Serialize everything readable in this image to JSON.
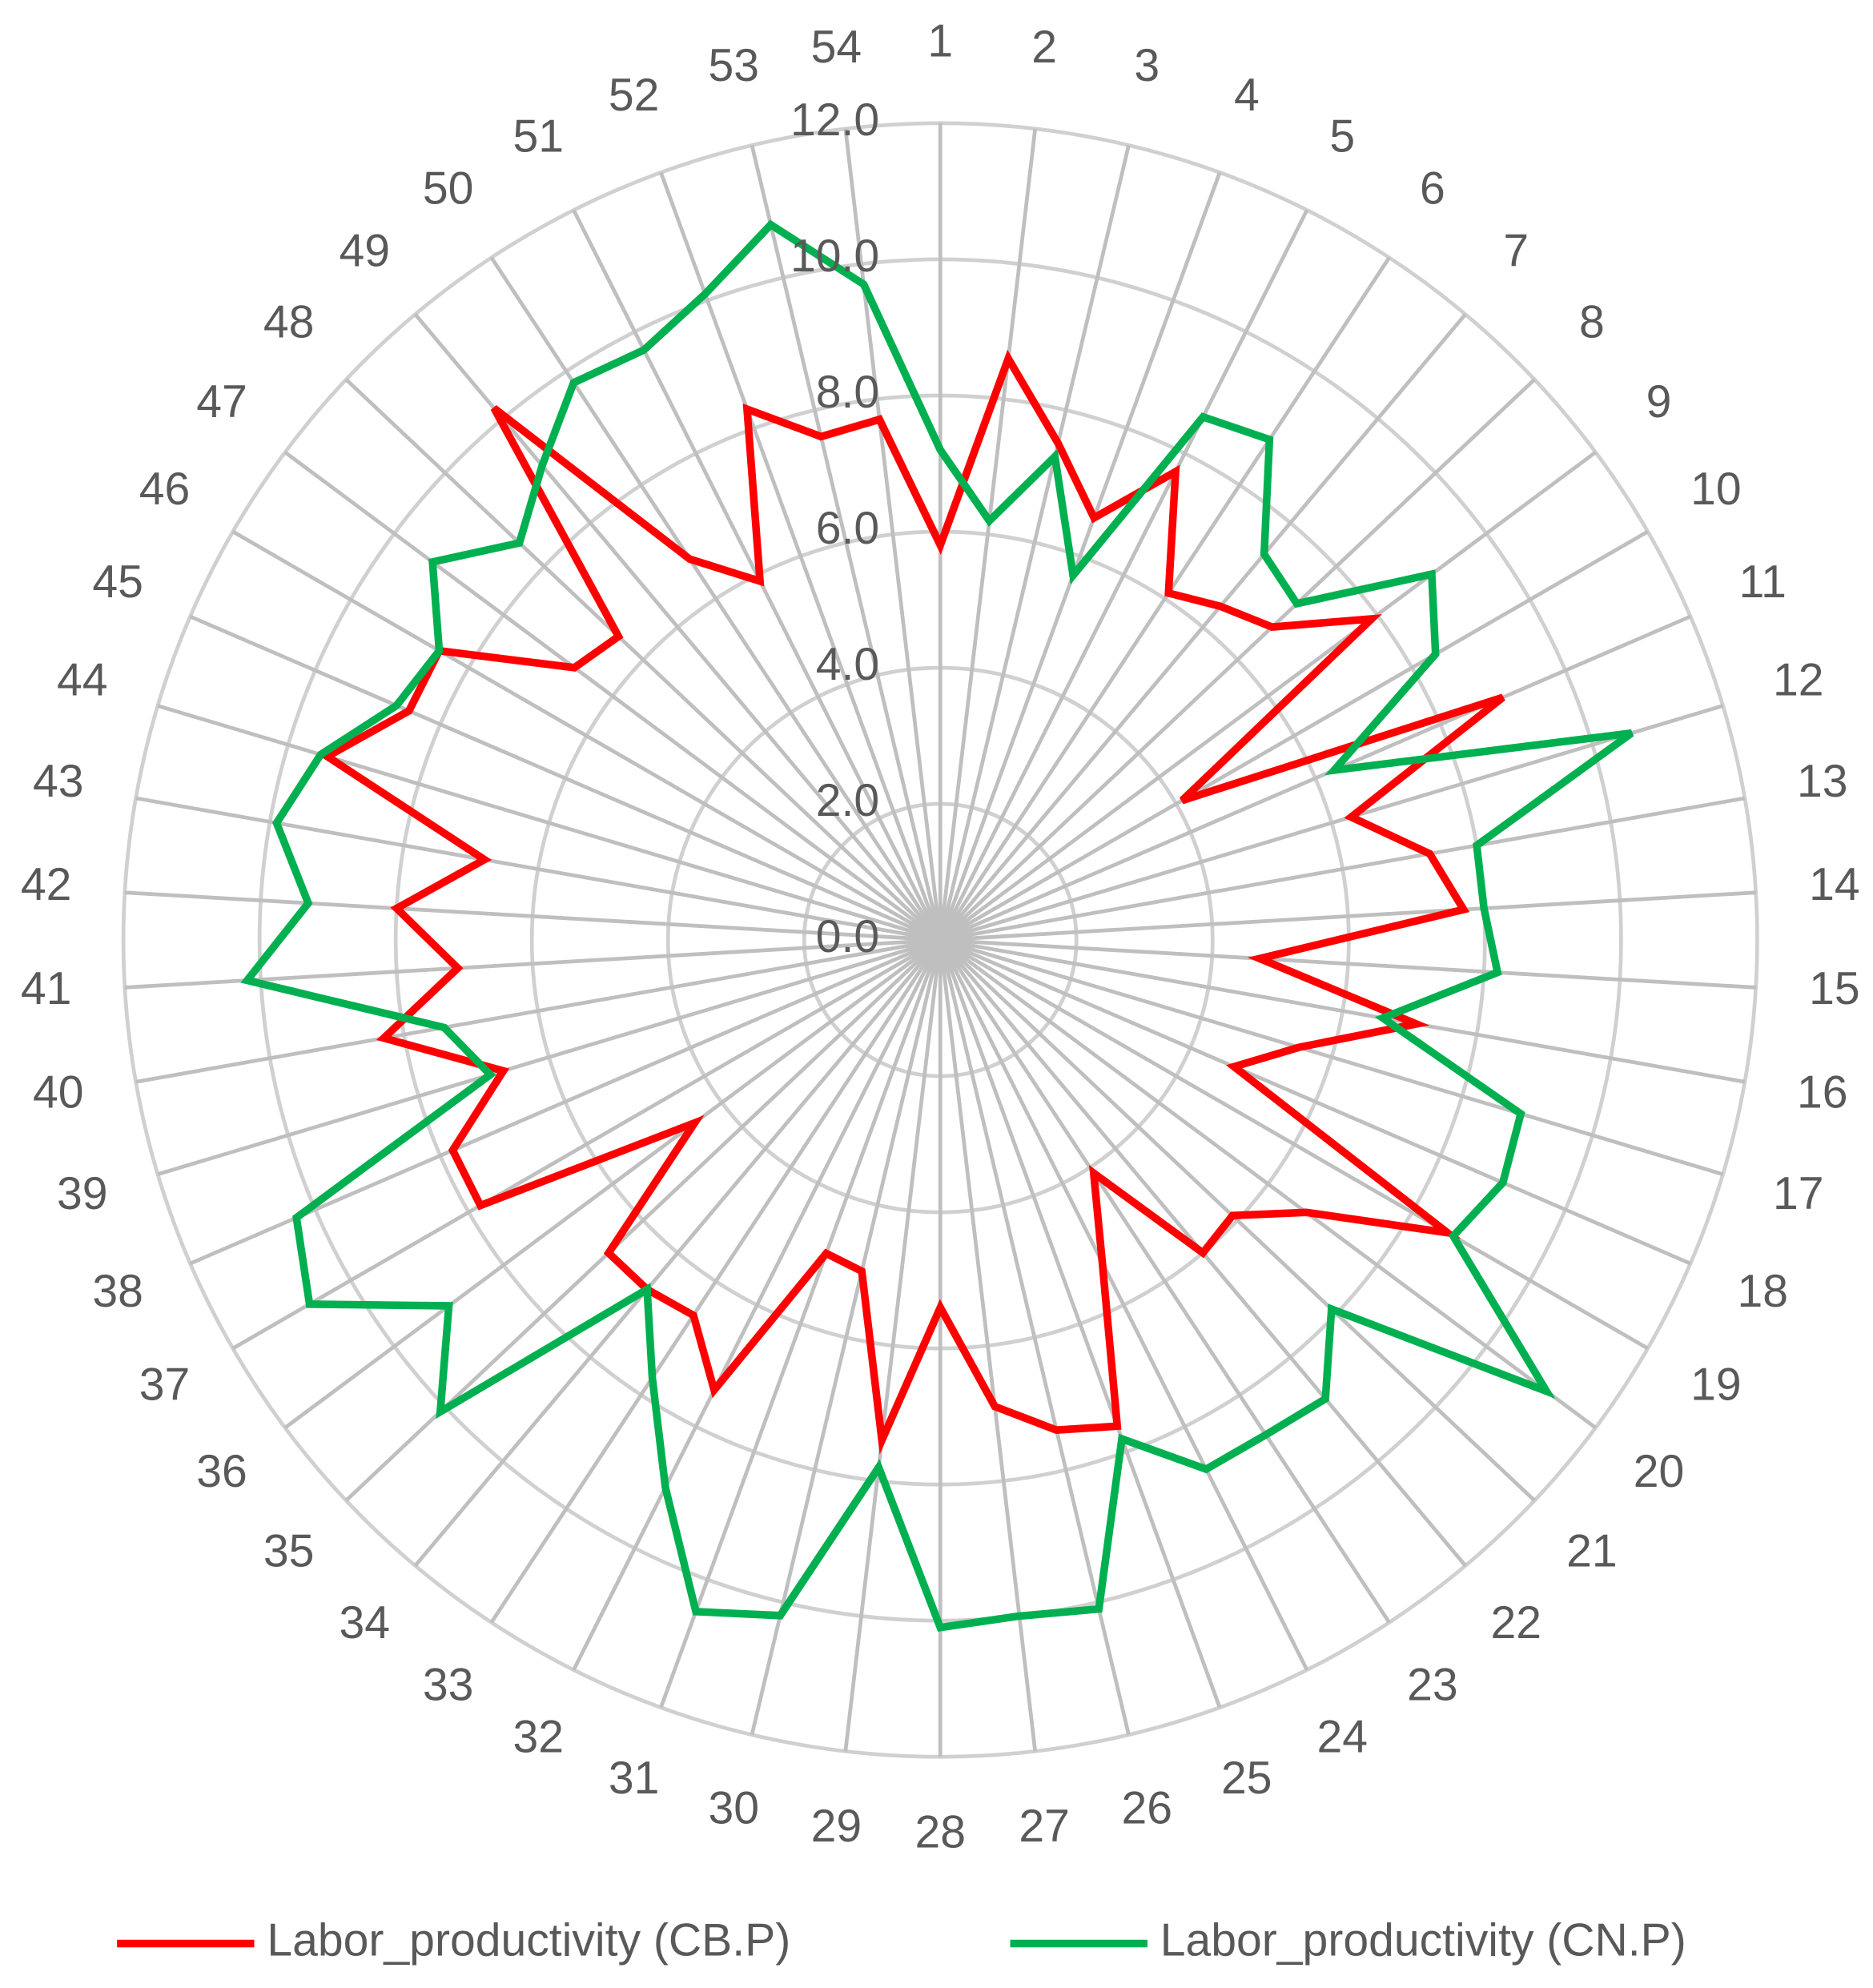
{
  "chart_data": {
    "type": "radar",
    "categories": [
      "1",
      "2",
      "3",
      "4",
      "5",
      "6",
      "7",
      "8",
      "9",
      "10",
      "11",
      "12",
      "13",
      "14",
      "15",
      "16",
      "17",
      "18",
      "19",
      "20",
      "21",
      "22",
      "23",
      "24",
      "25",
      "26",
      "27",
      "28",
      "29",
      "30",
      "31",
      "32",
      "33",
      "34",
      "35",
      "36",
      "37",
      "38",
      "39",
      "40",
      "41",
      "42",
      "43",
      "44",
      "45",
      "46",
      "47",
      "48",
      "49",
      "50",
      "51",
      "52",
      "53",
      "54"
    ],
    "ylim": [
      0,
      12
    ],
    "yticks": [
      {
        "value": 0,
        "label": "0.0"
      },
      {
        "value": 2,
        "label": "2.0"
      },
      {
        "value": 4,
        "label": "4.0"
      },
      {
        "value": 6,
        "label": "6.0"
      },
      {
        "value": 8,
        "label": "8.0"
      },
      {
        "value": 10,
        "label": "10.0"
      },
      {
        "value": 12,
        "label": "12.0"
      }
    ],
    "grid": true,
    "legend": "bottom",
    "series": [
      {
        "name": "Labor_productivity (CB.P)",
        "color": "#ff0000",
        "values": [
          5.8,
          8.6,
          7.5,
          6.6,
          7.7,
          6.1,
          6.4,
          6.7,
          7.9,
          4.1,
          9.0,
          6.3,
          7.3,
          7.7,
          4.7,
          7.1,
          5.5,
          4.7,
          8.6,
          6.7,
          5.9,
          6.0,
          4.1,
          5.3,
          7.6,
          7.4,
          6.9,
          5.4,
          7.4,
          5.0,
          4.9,
          7.4,
          6.6,
          6.7,
          6.7,
          4.5,
          7.8,
          7.8,
          6.7,
          8.3,
          7.1,
          8.0,
          6.8,
          9.4,
          8.5,
          8.5,
          6.7,
          6.5,
          10.2,
          6.7,
          5.9,
          8.3,
          7.6,
          7.7
        ]
      },
      {
        "name": "Labor_productivity (CN.P)",
        "color": "#00b050",
        "values": [
          7.2,
          6.2,
          7.3,
          5.7,
          8.6,
          8.8,
          7.4,
          7.2,
          9.0,
          8.4,
          6.3,
          10.6,
          8.0,
          8.0,
          8.2,
          6.6,
          8.9,
          9.0,
          8.7,
          11.1,
          7.9,
          8.8,
          8.7,
          8.7,
          7.8,
          10.1,
          10.0,
          10.1,
          7.8,
          10.2,
          10.5,
          9.0,
          7.7,
          6.7,
          10.1,
          9.0,
          10.7,
          10.3,
          6.9,
          7.4,
          10.2,
          9.3,
          9.9,
          9.5,
          8.7,
          8.5,
          9.3,
          8.5,
          9.1,
          9.8,
          9.7,
          10.1,
          10.8,
          9.7
        ]
      }
    ]
  }
}
